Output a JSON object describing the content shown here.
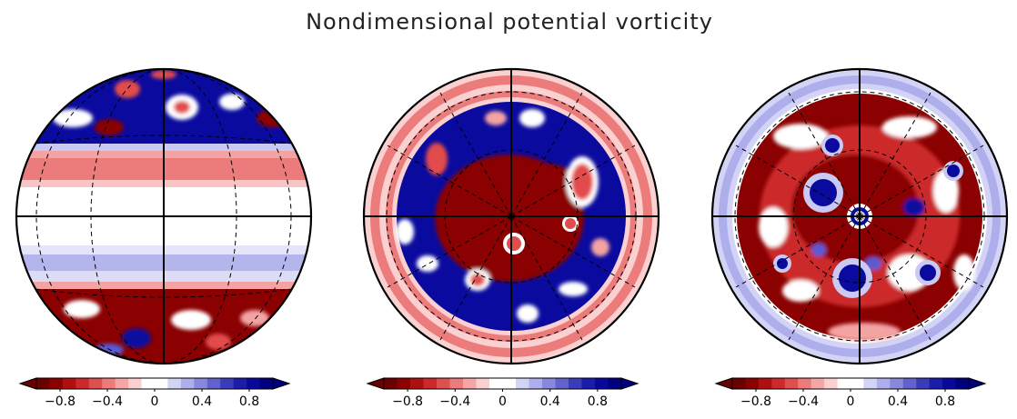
{
  "chart_data": {
    "type": "heatmap",
    "title": "Nondimensional potential vorticity",
    "panels": [
      {
        "view": "equatorial"
      },
      {
        "view": "north-polar"
      },
      {
        "view": "south-polar"
      }
    ],
    "colorbar": {
      "range": [
        -1.0,
        1.0
      ],
      "ticks": [
        -0.8,
        -0.4,
        0,
        0.4,
        0.8
      ],
      "tick_labels": [
        "−0.8",
        "−0.4",
        "0",
        "0.4",
        "0.8"
      ],
      "levels": [
        "#6b0000",
        "#8c0000",
        "#b00f0f",
        "#cc2a2a",
        "#de4f4f",
        "#ec7b7b",
        "#f5a6a6",
        "#fbd0d0",
        "#ffffff",
        "#ffffff",
        "#d3d3f6",
        "#aeaeec",
        "#8888dd",
        "#6262cc",
        "#3c3cbb",
        "#1c1cab",
        "#08089b",
        "#00007e"
      ],
      "extend": "both"
    }
  },
  "colors": {
    "neg_strong": "#8b0000",
    "neg_mid": "#e14c4c",
    "neg_light": "#f4a3a3",
    "pos_light": "#c9c9f3",
    "pos_mid": "#5a5ad2",
    "pos_strong": "#0a0a9e",
    "outline": "#000000"
  }
}
